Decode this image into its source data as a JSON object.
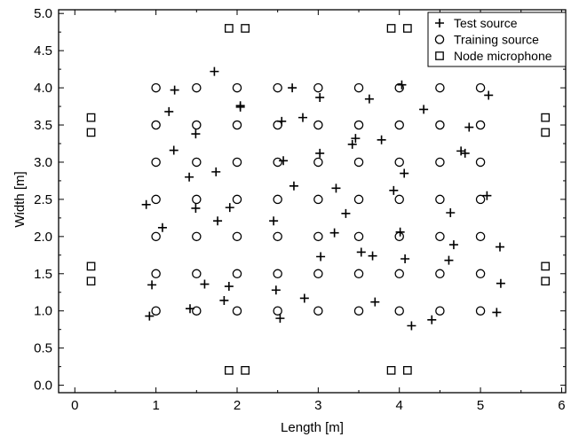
{
  "chart_data": {
    "type": "scatter",
    "title": "",
    "xlabel": "Length [m]",
    "ylabel": "Width [m]",
    "xlim": [
      -0.2,
      6.05
    ],
    "ylim": [
      -0.1,
      5.05
    ],
    "xticks": [
      "0",
      "1",
      "2",
      "3",
      "4",
      "5",
      "6"
    ],
    "yticks": [
      "0.0",
      "0.5",
      "1.0",
      "1.5",
      "2.0",
      "2.5",
      "3.0",
      "3.5",
      "4.0",
      "4.5",
      "5.0"
    ],
    "grid": false,
    "legend_position": "top-right",
    "series": [
      {
        "name": "Test source",
        "marker": "plus",
        "points": [
          [
            0.92,
            0.93
          ],
          [
            1.42,
            1.03
          ],
          [
            1.6,
            1.36
          ],
          [
            1.84,
            1.14
          ],
          [
            1.9,
            1.33
          ],
          [
            2.48,
            1.28
          ],
          [
            2.53,
            0.9
          ],
          [
            2.83,
            1.17
          ],
          [
            3.7,
            1.12
          ],
          [
            4.15,
            0.8
          ],
          [
            4.4,
            0.88
          ],
          [
            5.2,
            0.98
          ],
          [
            0.95,
            1.35
          ],
          [
            5.25,
            1.37
          ],
          [
            4.61,
            1.68
          ],
          [
            4.07,
            1.7
          ],
          [
            4.67,
            1.89
          ],
          [
            5.24,
            1.86
          ],
          [
            3.03,
            1.73
          ],
          [
            3.53,
            1.79
          ],
          [
            3.67,
            1.74
          ],
          [
            3.2,
            2.05
          ],
          [
            4.01,
            2.06
          ],
          [
            1.08,
            2.12
          ],
          [
            1.49,
            2.38
          ],
          [
            1.76,
            2.21
          ],
          [
            1.91,
            2.39
          ],
          [
            2.45,
            2.21
          ],
          [
            3.34,
            2.31
          ],
          [
            4.63,
            2.32
          ],
          [
            0.88,
            2.43
          ],
          [
            1.41,
            2.8
          ],
          [
            1.74,
            2.87
          ],
          [
            2.7,
            2.68
          ],
          [
            3.22,
            2.65
          ],
          [
            3.93,
            2.62
          ],
          [
            5.08,
            2.55
          ],
          [
            1.22,
            3.16
          ],
          [
            2.57,
            3.02
          ],
          [
            3.02,
            3.12
          ],
          [
            3.78,
            3.3
          ],
          [
            4.76,
            3.15
          ],
          [
            4.81,
            3.12
          ],
          [
            4.06,
            2.85
          ],
          [
            3.42,
            3.24
          ],
          [
            3.46,
            3.32
          ],
          [
            1.16,
            3.68
          ],
          [
            1.49,
            3.38
          ],
          [
            2.04,
            3.74
          ],
          [
            2.55,
            3.55
          ],
          [
            2.81,
            3.6
          ],
          [
            4.3,
            3.71
          ],
          [
            4.86,
            3.47
          ],
          [
            1.23,
            3.97
          ],
          [
            2.04,
            3.76
          ],
          [
            3.02,
            3.87
          ],
          [
            3.63,
            3.85
          ],
          [
            5.1,
            3.9
          ],
          [
            4.03,
            4.04
          ],
          [
            2.68,
            4.0
          ],
          [
            1.72,
            4.22
          ]
        ]
      },
      {
        "name": "Training source",
        "marker": "circle",
        "points": [
          [
            1,
            1
          ],
          [
            1.5,
            1
          ],
          [
            2,
            1
          ],
          [
            2.5,
            1
          ],
          [
            3,
            1
          ],
          [
            3.5,
            1
          ],
          [
            4,
            1
          ],
          [
            4.5,
            1
          ],
          [
            5,
            1
          ],
          [
            1,
            1.5
          ],
          [
            1.5,
            1.5
          ],
          [
            2,
            1.5
          ],
          [
            2.5,
            1.5
          ],
          [
            3,
            1.5
          ],
          [
            3.5,
            1.5
          ],
          [
            4,
            1.5
          ],
          [
            4.5,
            1.5
          ],
          [
            5,
            1.5
          ],
          [
            1,
            2
          ],
          [
            1.5,
            2
          ],
          [
            2,
            2
          ],
          [
            2.5,
            2
          ],
          [
            3,
            2
          ],
          [
            3.5,
            2
          ],
          [
            4,
            2
          ],
          [
            4.5,
            2
          ],
          [
            5,
            2
          ],
          [
            1,
            2.5
          ],
          [
            1.5,
            2.5
          ],
          [
            2,
            2.5
          ],
          [
            2.5,
            2.5
          ],
          [
            3,
            2.5
          ],
          [
            3.5,
            2.5
          ],
          [
            4,
            2.5
          ],
          [
            4.5,
            2.5
          ],
          [
            5,
            2.5
          ],
          [
            1,
            3
          ],
          [
            1.5,
            3
          ],
          [
            2,
            3
          ],
          [
            2.5,
            3
          ],
          [
            3,
            3
          ],
          [
            3.5,
            3
          ],
          [
            4,
            3
          ],
          [
            4.5,
            3
          ],
          [
            5,
            3
          ],
          [
            1,
            3.5
          ],
          [
            1.5,
            3.5
          ],
          [
            2,
            3.5
          ],
          [
            2.5,
            3.5
          ],
          [
            3,
            3.5
          ],
          [
            3.5,
            3.5
          ],
          [
            4,
            3.5
          ],
          [
            4.5,
            3.5
          ],
          [
            5,
            3.5
          ],
          [
            1,
            4
          ],
          [
            1.5,
            4
          ],
          [
            2,
            4
          ],
          [
            2.5,
            4
          ],
          [
            3,
            4
          ],
          [
            3.5,
            4
          ],
          [
            4,
            4
          ],
          [
            4.5,
            4
          ],
          [
            5,
            4
          ]
        ]
      },
      {
        "name": "Node microphone",
        "marker": "square",
        "points": [
          [
            1.9,
            4.8
          ],
          [
            2.1,
            4.8
          ],
          [
            3.9,
            4.8
          ],
          [
            4.1,
            4.8
          ],
          [
            0.2,
            3.6
          ],
          [
            0.2,
            3.4
          ],
          [
            5.8,
            3.6
          ],
          [
            5.8,
            3.4
          ],
          [
            0.2,
            1.6
          ],
          [
            0.2,
            1.4
          ],
          [
            5.8,
            1.6
          ],
          [
            5.8,
            1.4
          ],
          [
            1.9,
            0.2
          ],
          [
            2.1,
            0.2
          ],
          [
            3.9,
            0.2
          ],
          [
            4.1,
            0.2
          ]
        ]
      }
    ]
  }
}
